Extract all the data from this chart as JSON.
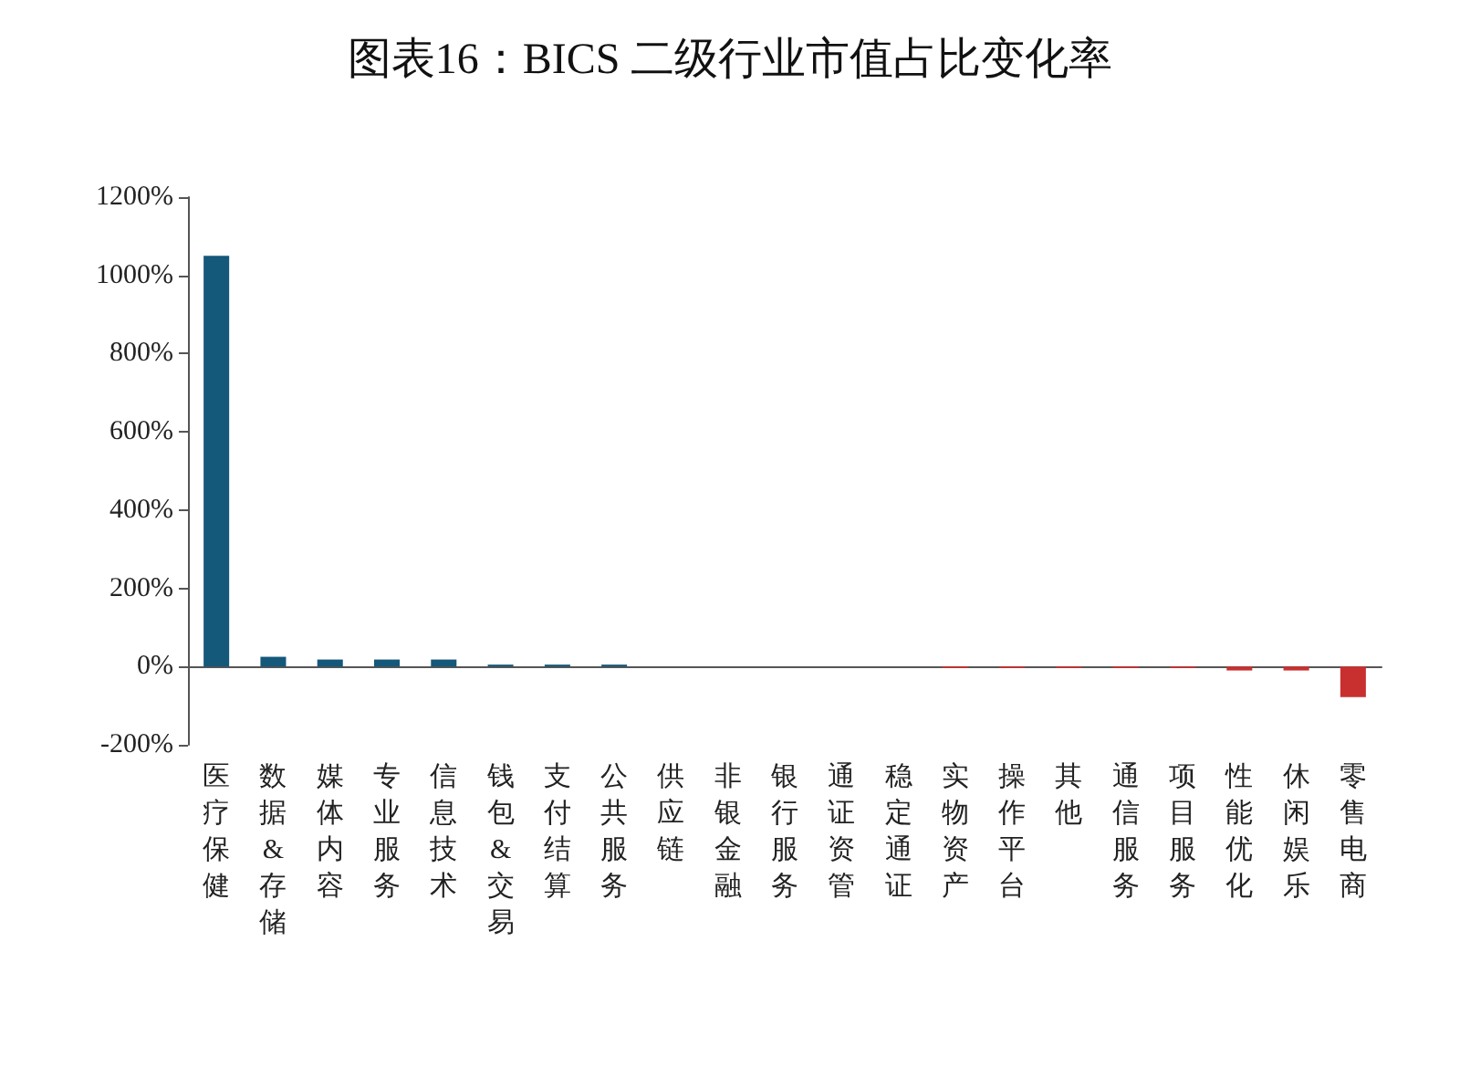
{
  "chart_data": {
    "type": "bar",
    "title": "图表16：BICS 二级行业市值占比变化率",
    "categories": [
      "医疗保健",
      "数据&存储",
      "媒体内容",
      "专业服务",
      "信息技术",
      "钱包&交易",
      "支付结算",
      "公共服务",
      "供应链",
      "非银金融",
      "银行服务",
      "通证资管",
      "稳定通证",
      "实物资产",
      "操作平台",
      "其他",
      "通信服务",
      "项目服务",
      "性能优化",
      "休闲娱乐",
      "零售电商"
    ],
    "values": [
      1050,
      25,
      18,
      18,
      18,
      5,
      5,
      5,
      0,
      0,
      0,
      0,
      0,
      -4,
      -4,
      -4,
      -4,
      -4,
      -10,
      -10,
      -78
    ],
    "colors": [
      "#14587a",
      "#14587a",
      "#14587a",
      "#14587a",
      "#14587a",
      "#14587a",
      "#14587a",
      "#14587a",
      "#14587a",
      "#14587a",
      "#14587a",
      "#14587a",
      "#14587a",
      "#c8302f",
      "#c8302f",
      "#c8302f",
      "#c8302f",
      "#c8302f",
      "#c8302f",
      "#c8302f",
      "#c8302f"
    ],
    "ylim": [
      -200,
      1200
    ],
    "yticks": [
      {
        "value": -200,
        "label": "-200%"
      },
      {
        "value": 0,
        "label": "0%"
      },
      {
        "value": 200,
        "label": "200%"
      },
      {
        "value": 400,
        "label": "400%"
      },
      {
        "value": 600,
        "label": "600%"
      },
      {
        "value": 800,
        "label": "800%"
      },
      {
        "value": 1000,
        "label": "1000%"
      },
      {
        "value": 1200,
        "label": "1200%"
      }
    ],
    "tick_labels": true
  }
}
